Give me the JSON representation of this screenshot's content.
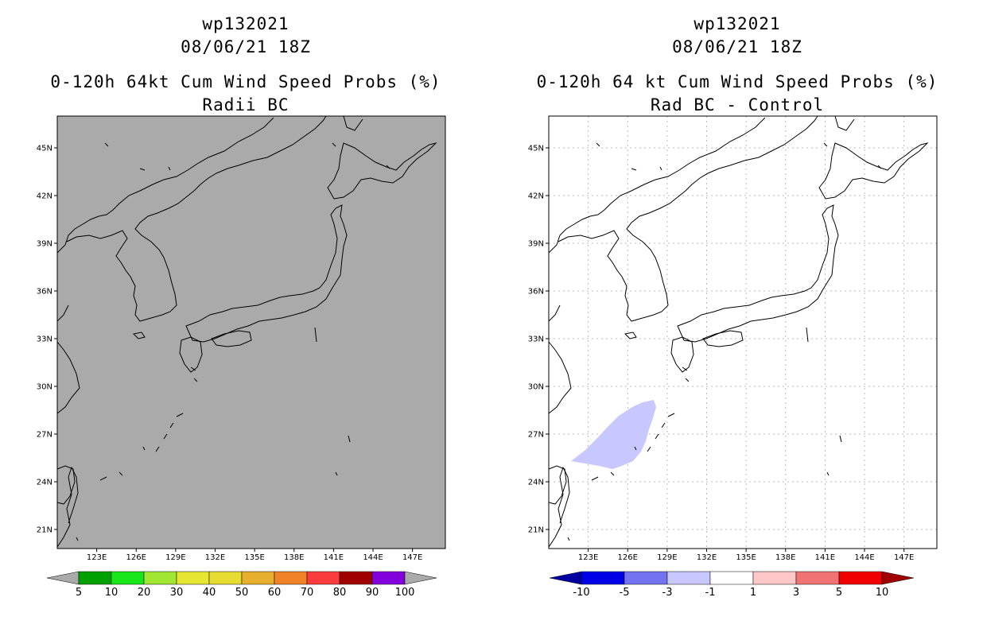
{
  "left_panel": {
    "storm_id": "wp132021",
    "datetime": "08/06/21 18Z",
    "title": "0-120h 64kt Cum Wind Speed Probs (%)",
    "subtitle": "Radii BC",
    "map_background": "#aaaaaa",
    "colorbar": {
      "labels": [
        "5",
        "10",
        "20",
        "30",
        "40",
        "50",
        "60",
        "70",
        "80",
        "90",
        "100"
      ],
      "colors": [
        "#00a000",
        "#19e619",
        "#a0e632",
        "#e6e632",
        "#e6dc32",
        "#e6af2d",
        "#f08228",
        "#fa3c3c",
        "#a00000",
        "#8200dc"
      ],
      "below_color": "#aaaaaa",
      "above_color": "#aaaaaa"
    }
  },
  "right_panel": {
    "storm_id": "wp132021",
    "datetime": "08/06/21 18Z",
    "title": "0-120h 64 kt Cum Wind Speed Probs (%)",
    "subtitle": "Rad BC - Control",
    "map_background": "#ffffff",
    "shaded_region_color": "#c8c8ff",
    "colorbar": {
      "labels": [
        "-10",
        "-5",
        "-3",
        "-1",
        "1",
        "3",
        "5",
        "10"
      ],
      "colors": [
        "#0000e6",
        "#7373f0",
        "#c8c8ff",
        "#ffffff",
        "#ffc8c8",
        "#f07373",
        "#f00000"
      ],
      "below_color": "#0000a0",
      "above_color": "#a00000"
    }
  },
  "axes": {
    "lat_labels": [
      "45N",
      "42N",
      "39N",
      "36N",
      "33N",
      "30N",
      "27N",
      "24N",
      "21N"
    ],
    "lat_values": [
      45,
      42,
      39,
      36,
      33,
      30,
      27,
      24,
      21
    ],
    "lon_labels": [
      "123E",
      "126E",
      "129E",
      "132E",
      "135E",
      "138E",
      "141E",
      "144E",
      "147E"
    ],
    "lon_values": [
      123,
      126,
      129,
      132,
      135,
      138,
      141,
      144,
      147
    ],
    "lon_range": [
      120,
      149.5
    ],
    "lat_range": [
      19.8,
      47
    ]
  }
}
